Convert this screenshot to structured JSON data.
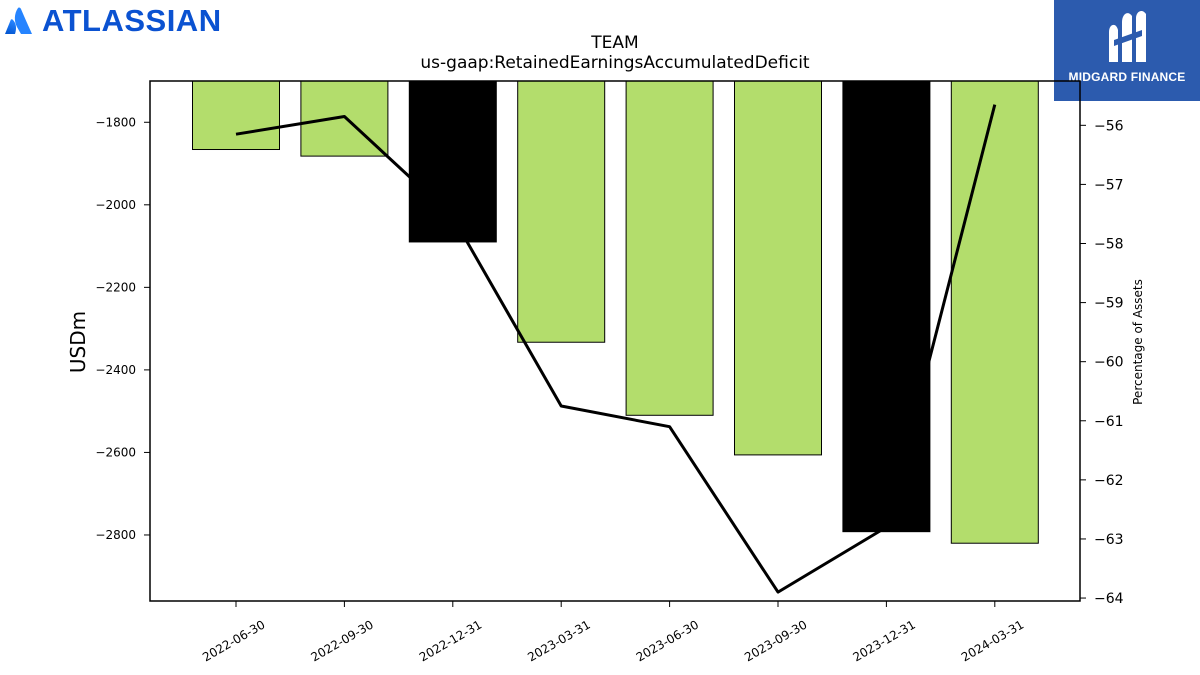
{
  "logos": {
    "left_brand": "ATLASSIAN",
    "right_brand": "MIDGARD FINANCE"
  },
  "colors": {
    "bar_default": "#b3dd6c",
    "bar_highlight": "#000000",
    "line": "#000000",
    "atlassian_blue": "#0b52d1",
    "midgard_blue": "#2c5bae"
  },
  "chart_data": {
    "type": "bar",
    "title": "TEAM",
    "subtitle": "us-gaap:RetainedEarningsAccumulatedDeficit",
    "ylabel": "USDm",
    "y2label": "Percentage of Assets",
    "categories": [
      "2022-06-30",
      "2022-09-30",
      "2022-12-31",
      "2023-03-31",
      "2023-06-30",
      "2023-09-30",
      "2023-12-31",
      "2024-03-31"
    ],
    "series": [
      {
        "type": "bar",
        "axis": "left",
        "values": [
          -1866,
          -1882,
          -2090,
          -2333,
          -2510,
          -2606,
          -2792,
          -2820
        ],
        "highlight": [
          false,
          false,
          true,
          false,
          false,
          false,
          true,
          false
        ]
      },
      {
        "type": "line",
        "axis": "right",
        "values": [
          -56.15,
          -55.85,
          -57.55,
          -60.75,
          -61.1,
          -63.9,
          -62.8,
          -55.65
        ]
      }
    ],
    "ylim": [
      -2960,
      -1700
    ],
    "y2lim": [
      -64.05,
      -55.25
    ],
    "yticks": [
      -1800,
      -2000,
      -2200,
      -2400,
      -2600,
      -2800
    ],
    "y2ticks": [
      -56,
      -57,
      -58,
      -59,
      -60,
      -61,
      -62,
      -63,
      -64
    ],
    "grid": false,
    "legend": "none"
  }
}
